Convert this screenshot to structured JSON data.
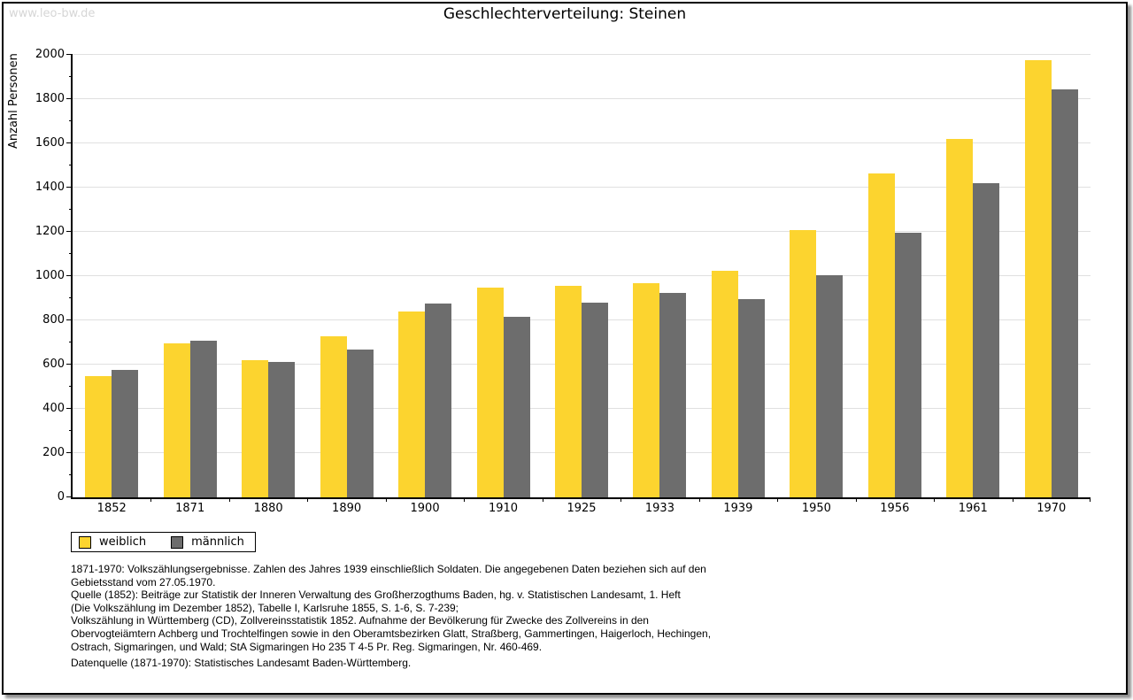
{
  "watermark": "www.leo-bw.de",
  "title": "Geschlechterverteilung: Steinen",
  "chart_data": {
    "type": "bar",
    "title": "Geschlechterverteilung: Steinen",
    "xlabel": "",
    "ylabel": "Anzahl Personen",
    "ylim": [
      0,
      2000
    ],
    "ytick_step": 200,
    "ytick_minor_step": 100,
    "grid": "horizontal-major",
    "gridline_color": "#e0e0e0",
    "legend_position": "bottom-left",
    "categories": [
      "1852",
      "1871",
      "1880",
      "1890",
      "1900",
      "1910",
      "1925",
      "1933",
      "1939",
      "1950",
      "1956",
      "1961",
      "1970"
    ],
    "series": [
      {
        "name": "weiblich",
        "color": "#fcd42f",
        "values": [
          550,
          695,
          620,
          730,
          840,
          950,
          955,
          970,
          1025,
          1210,
          1465,
          1620,
          1975
        ]
      },
      {
        "name": "männlich",
        "color": "#6d6d6d",
        "values": [
          575,
          710,
          613,
          670,
          875,
          815,
          880,
          925,
          895,
          1005,
          1195,
          1420,
          1845
        ]
      }
    ]
  },
  "legend": {
    "items": [
      {
        "label": "weiblich",
        "color": "#fcd42f"
      },
      {
        "label": "männlich",
        "color": "#6d6d6d"
      }
    ]
  },
  "footer": {
    "lines": [
      "1871-1970: Volkszählungsergebnisse. Zahlen des Jahres 1939 einschließlich Soldaten. Die angegebenen Daten beziehen sich auf den",
      "Gebietsstand vom 27.05.1970.",
      "Quelle (1852): Beiträge zur Statistik der Inneren Verwaltung des Großherzogthums Baden, hg. v. Statistischen Landesamt, 1. Heft",
      "(Die Volkszählung im Dezember 1852), Tabelle I, Karlsruhe 1855, S. 1-6, S. 7-239;",
      "Volkszählung in Württemberg (CD), Zollvereinsstatistik 1852. Aufnahme der Bevölkerung für Zwecke des Zollvereins in den",
      "Obervogteiämtern Achberg und Trochtelfingen sowie in den Oberamtsbezirken Glatt, Straßberg, Gammertingen, Haigerloch, Hechingen,",
      "Ostrach, Sigmaringen, und Wald; StA Sigmaringen Ho 235 T 4-5 Pr. Reg. Sigmaringen, Nr. 460-469."
    ],
    "datasource": "Datenquelle (1871-1970): Statistisches Landesamt Baden-Württemberg."
  }
}
